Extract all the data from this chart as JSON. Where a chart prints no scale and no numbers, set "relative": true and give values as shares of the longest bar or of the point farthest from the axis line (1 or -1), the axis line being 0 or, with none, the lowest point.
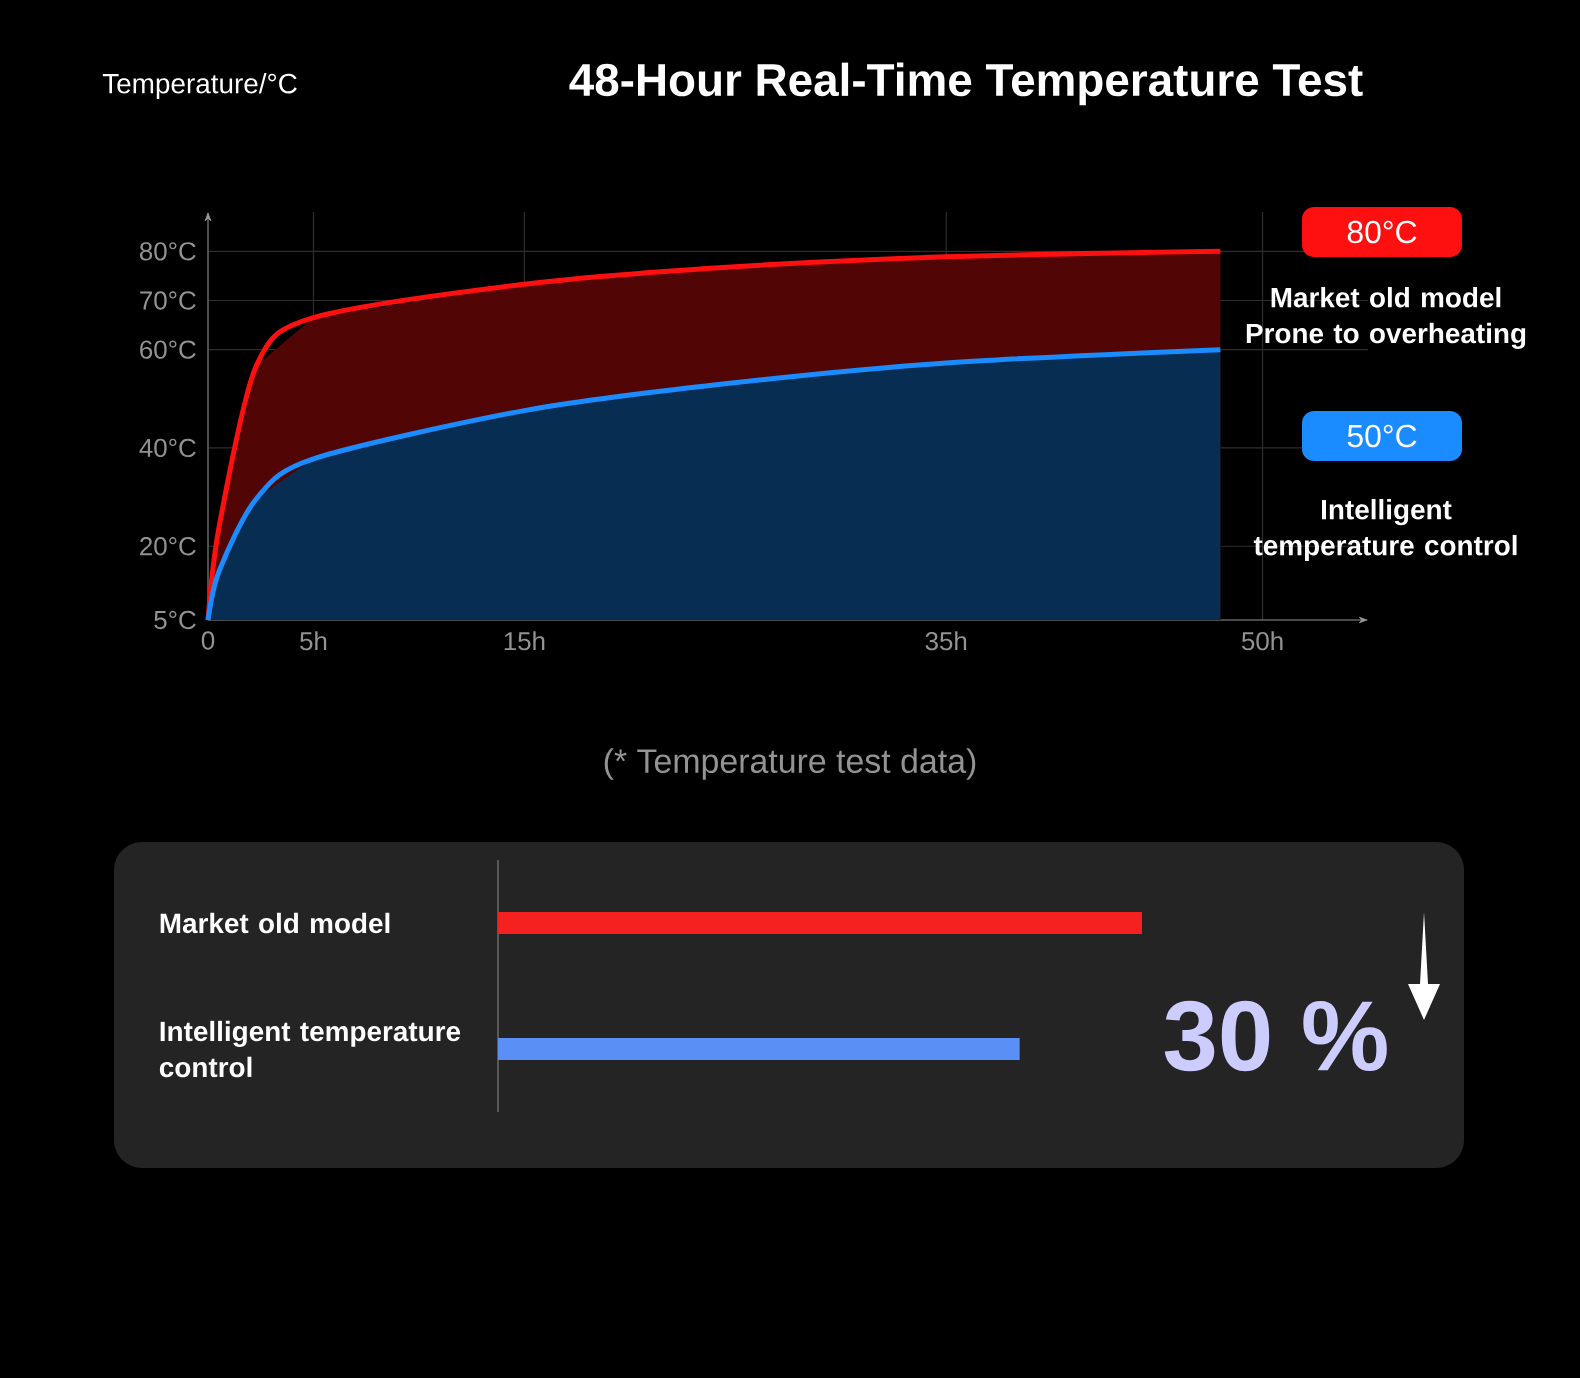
{
  "chart_data": [
    {
      "type": "area",
      "title": "48-Hour Real-Time Temperature Test",
      "ylabel": "Temperature/°C",
      "xlim": [
        0,
        55
      ],
      "ylim": [
        5,
        88
      ],
      "xticks": [
        0,
        {
          "value": 5,
          "label": "5h"
        },
        {
          "value": 15,
          "label": "15h"
        },
        {
          "value": 35,
          "label": "35h"
        },
        {
          "value": 50,
          "label": "50h"
        }
      ],
      "yticks": [
        {
          "value": 5,
          "label": "5°C"
        },
        {
          "value": 20,
          "label": "20°C"
        },
        {
          "value": 40,
          "label": "40°C"
        },
        {
          "value": 60,
          "label": "60°C"
        },
        {
          "value": 70,
          "label": "70°C"
        },
        {
          "value": 80,
          "label": "80°C"
        }
      ],
      "grid": true,
      "series": [
        {
          "name": "Market old model Prone to overheating",
          "color": "#ff1010",
          "x": [
            0,
            0.54,
            2.3,
            5,
            15,
            24.4,
            35,
            48
          ],
          "values": [
            5,
            24.3,
            56.8,
            66.5,
            73.3,
            76.7,
            78.9,
            80
          ]
        },
        {
          "name": "Intelligent temperature control",
          "color": "#1a8cff",
          "x": [
            0,
            0.54,
            2.3,
            5,
            15,
            24.4,
            35,
            48
          ],
          "values": [
            5,
            15.1,
            29.7,
            37.8,
            47.6,
            53,
            57.3,
            60
          ]
        }
      ],
      "annotations": [
        "80°C",
        "50°C",
        "(* Temperature test data)"
      ]
    },
    {
      "type": "bar",
      "orientation": "horizontal",
      "relative": true,
      "categories": [
        "Market old model",
        "Intelligent temperature control"
      ],
      "values": [
        1,
        0.81
      ],
      "colors": [
        "#f52020",
        "#5a8ff5"
      ],
      "annotations": [
        "30 %"
      ]
    }
  ]
}
